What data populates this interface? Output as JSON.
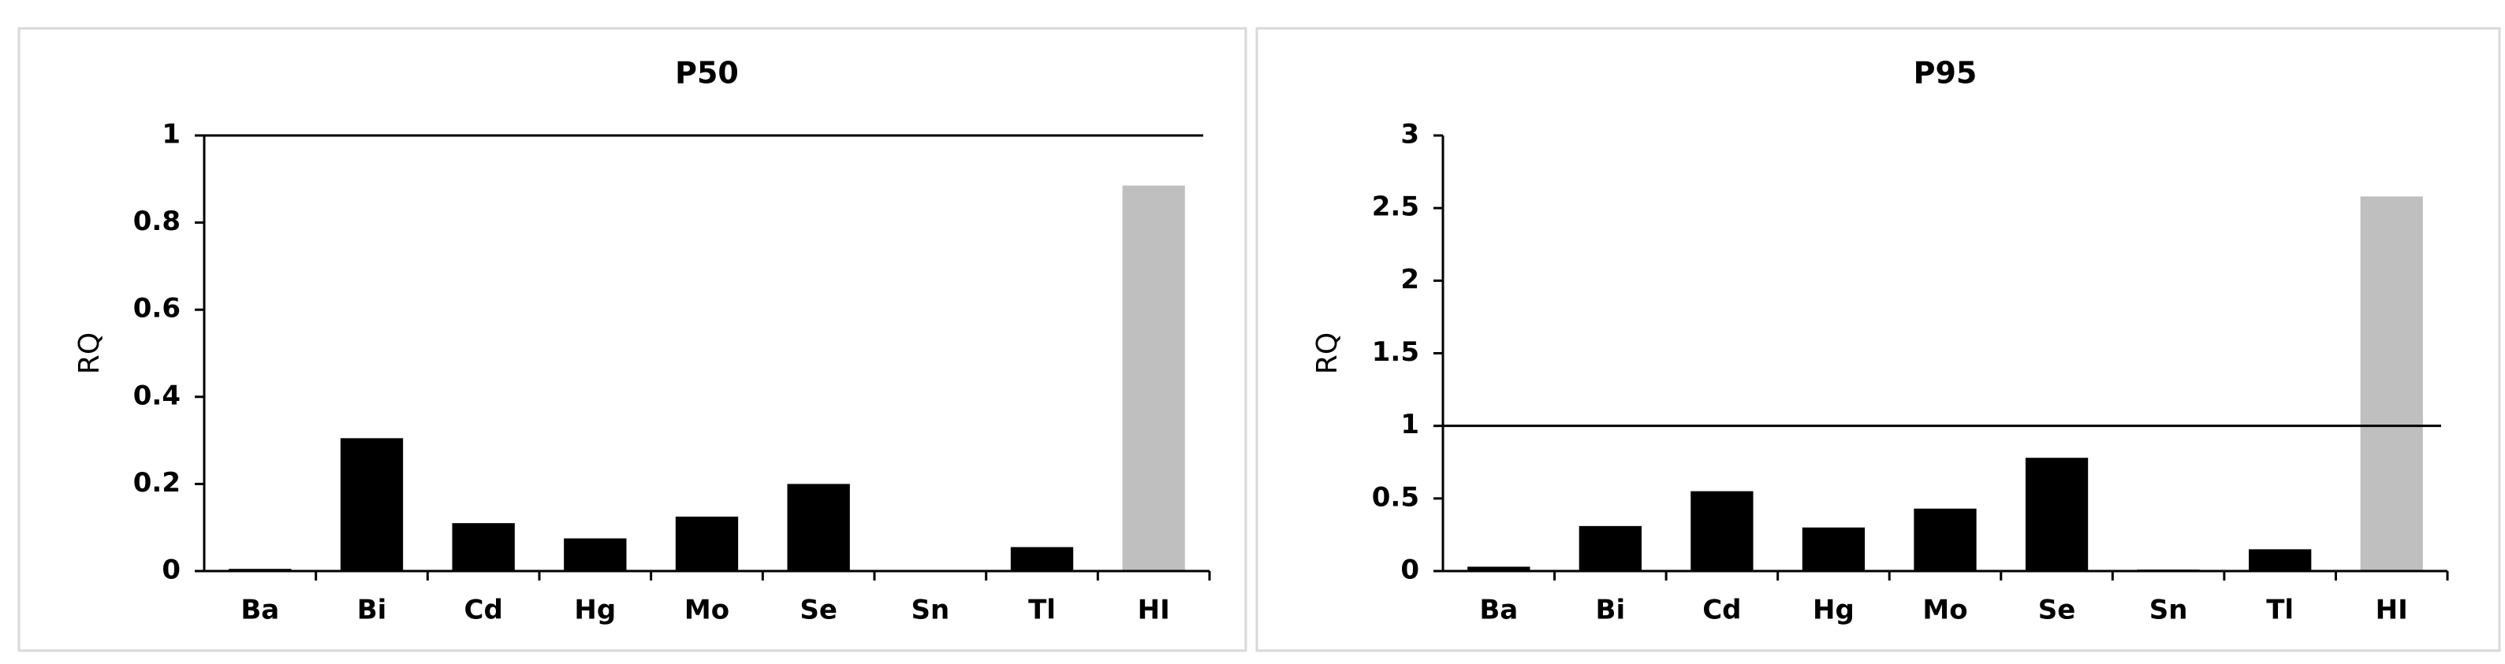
{
  "chart_data": [
    {
      "type": "bar",
      "title": "P50",
      "y_label": "RQ",
      "categories": [
        "Ba",
        "Bi",
        "Cd",
        "Hg",
        "Mo",
        "Se",
        "Sn",
        "Tl",
        "HI"
      ],
      "values": [
        0.005,
        0.305,
        0.11,
        0.075,
        0.125,
        0.2,
        0,
        0.055,
        0.885
      ],
      "colors": [
        "#000000",
        "#000000",
        "#000000",
        "#000000",
        "#000000",
        "#000000",
        "#000000",
        "#000000",
        "#bfbfbf"
      ],
      "ylim": [
        0,
        1
      ],
      "yticks": [
        0,
        0.2,
        0.4,
        0.6,
        0.8,
        1
      ],
      "reference_line": 1
    },
    {
      "type": "bar",
      "title": "P95",
      "y_label": "RQ",
      "categories": [
        "Ba",
        "Bi",
        "Cd",
        "Hg",
        "Mo",
        "Se",
        "Sn",
        "Tl",
        "HI"
      ],
      "values": [
        0.03,
        0.31,
        0.55,
        0.3,
        0.43,
        0.78,
        0.01,
        0.15,
        2.58
      ],
      "colors": [
        "#000000",
        "#000000",
        "#000000",
        "#000000",
        "#000000",
        "#000000",
        "#000000",
        "#000000",
        "#bfbfbf"
      ],
      "ylim": [
        0,
        3
      ],
      "yticks": [
        0,
        0.5,
        1,
        1.5,
        2,
        2.5,
        3
      ],
      "reference_line": 1
    }
  ]
}
